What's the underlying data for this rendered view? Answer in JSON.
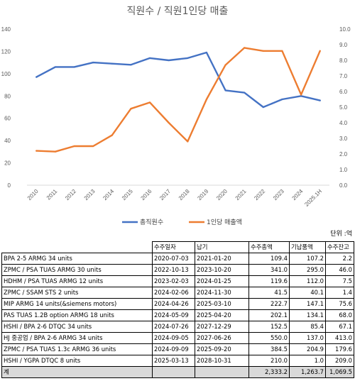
{
  "chart_data": {
    "type": "line",
    "title": "직원수 / 직원1인당 매출",
    "categories": [
      "2010",
      "2011",
      "2012",
      "2013",
      "2014",
      "2015",
      "2016",
      "2017",
      "2018",
      "2019",
      "2020",
      "2021",
      "2022",
      "2023",
      "2024",
      "2025.1H"
    ],
    "series": [
      {
        "name": "총직원수",
        "axis": "left",
        "color": "#4472c4",
        "values": [
          97,
          106,
          106,
          110,
          109,
          108,
          114,
          112,
          114,
          119,
          85,
          83,
          70,
          77,
          80,
          76
        ]
      },
      {
        "name": "1인당 매출액",
        "axis": "right",
        "color": "#ed7d31",
        "values": [
          2.2,
          2.15,
          2.5,
          2.5,
          3.2,
          4.9,
          5.3,
          4.0,
          2.8,
          5.5,
          7.7,
          8.8,
          8.6,
          8.6,
          5.8,
          8.6
        ]
      }
    ],
    "left_axis": {
      "ylim": [
        0,
        140
      ],
      "ticks": [
        "0",
        "20",
        "40",
        "60",
        "80",
        "100",
        "120",
        "140"
      ]
    },
    "right_axis": {
      "ylim": [
        0,
        10
      ],
      "ticks": [
        "0.0",
        "1.0",
        "2.0",
        "3.0",
        "4.0",
        "5.0",
        "6.0",
        "7.0",
        "8.0",
        "9.0",
        "10.0"
      ]
    },
    "grid": false,
    "legend_position": "bottom"
  },
  "table": {
    "unit_label": "단위 :억",
    "headers": [
      "",
      "수주일자",
      "납기",
      "수주총액",
      "기납품액",
      "수주잔고"
    ],
    "rows": [
      [
        "BPA 2-5 ARMG 34 units",
        "2020-07-03",
        "2021-01-20",
        "109.4",
        "107.2",
        "2.2"
      ],
      [
        "ZPMC / PSA TUAS ARMG 30 units",
        "2022-10-13",
        "2023-10-20",
        "341.0",
        "295.0",
        "46.0"
      ],
      [
        "HDHM / PSA TUAS ARMG 12 units",
        "2023-02-03",
        "2024-01-25",
        "119.6",
        "112.0",
        "7.5"
      ],
      [
        "ZPMC / SSAM STS 2 units",
        "2024-02-06",
        "2024-11-30",
        "41.5",
        "40.1",
        "1.4"
      ],
      [
        "MIP ARMG 14 units(&siemens motors)",
        "2024-04-26",
        "2025-03-10",
        "222.7",
        "147.1",
        "75.6"
      ],
      [
        "PAS TUAS 1.2B option ARMG 18 units",
        "2024-05-09",
        "2025-04-20",
        "202.1",
        "134.1",
        "68.0"
      ],
      [
        "HSHI / BPA 2-6 DTQC 34 units",
        "2024-07-26",
        "2027-12-29",
        "152.5",
        "85.4",
        "67.1"
      ],
      [
        "HJ 중공업 /  BPA 2-6 ARMG 34 units",
        "2024-09-05",
        "2027-06-26",
        "550.0",
        "137.0",
        "413.0"
      ],
      [
        "ZPMC / PSA TUAS 1.3c ARMG 36 units",
        "2024-09-09",
        "2025-09-20",
        "384.5",
        "204.9",
        "179.6"
      ],
      [
        "HSHI / YGPA DTQC 8 units",
        "2025-03-13",
        "2028-10-31",
        "210.0",
        "1.0",
        "209.0"
      ]
    ],
    "total": [
      "계",
      "",
      "",
      "2,333.2",
      "1,263.7",
      "1,069.5"
    ]
  }
}
